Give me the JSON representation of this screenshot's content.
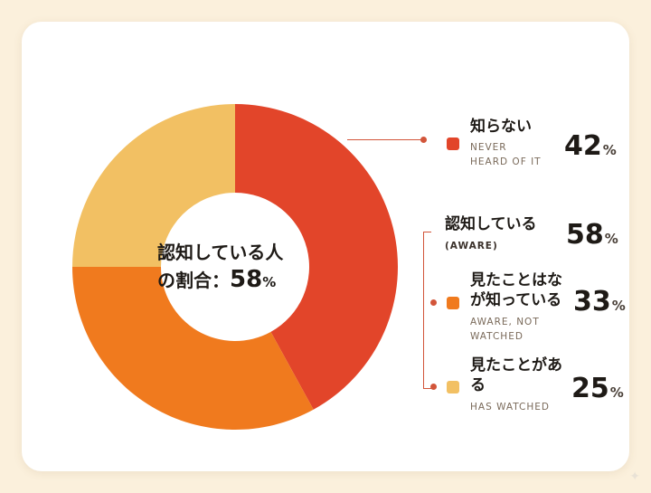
{
  "chart_data": {
    "type": "pie",
    "style": "donut",
    "categories": [
      "知らない",
      "見たことはなが知っている",
      "見たことがある"
    ],
    "values": [
      42,
      33,
      25
    ],
    "colors": [
      "#e2452a",
      "#f07a1e",
      "#f2c063"
    ],
    "unit": "%"
  },
  "center": {
    "line1": "認知している人",
    "line2": "の割合：",
    "value": "58",
    "unit": "%"
  },
  "legend": {
    "never": {
      "label": "知らない",
      "sub1": "NEVER",
      "sub2": "HEARD OF IT",
      "value": "42",
      "unit": "%",
      "color": "#e2452a"
    },
    "aware": {
      "label": "認知している",
      "sub1": "(AWARE)",
      "value": "58",
      "unit": "%"
    },
    "aware_not": {
      "label1": "見たことはな",
      "label2": "が知っている",
      "sub1": "AWARE, NOT",
      "sub2": "WATCHED",
      "value": "33",
      "unit": "%",
      "color": "#f07a1e"
    },
    "watched": {
      "label1": "見たことがあ",
      "label2": "る",
      "sub1": "HAS WATCHED",
      "value": "25",
      "unit": "%",
      "color": "#f2c063"
    }
  },
  "colors": {
    "connector": "#d2553a",
    "background": "#fbf0dc",
    "card": "#ffffff"
  }
}
